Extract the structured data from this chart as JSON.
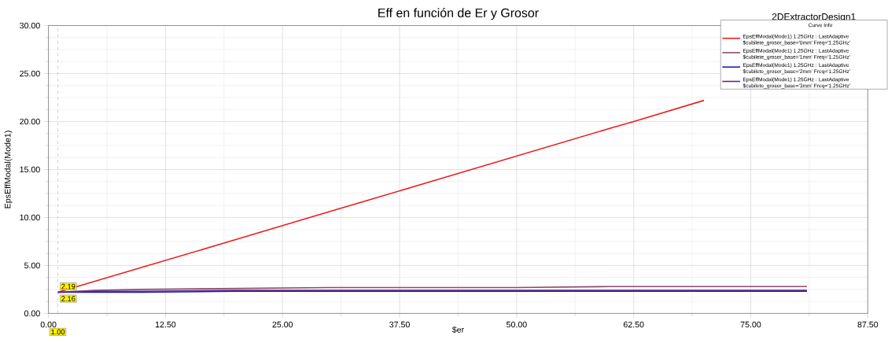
{
  "chart_data": {
    "type": "line",
    "title": "Eff en función de Er y Grosor",
    "xlabel": "$er",
    "ylabel": "EpsEffModal(Mode1)",
    "legend_title": "Curve Info",
    "xlim": [
      0,
      87.5
    ],
    "ylim": [
      0,
      30
    ],
    "xticks": [
      {
        "value": 0,
        "label": "0.00"
      },
      {
        "value": 12.5,
        "label": "12.50"
      },
      {
        "value": 25,
        "label": "25.00"
      },
      {
        "value": 37.5,
        "label": "37.50"
      },
      {
        "value": 50,
        "label": "50.00"
      },
      {
        "value": 62.5,
        "label": "62.50"
      },
      {
        "value": 75,
        "label": "75.00"
      },
      {
        "value": 87.5,
        "label": "87.50"
      }
    ],
    "yticks": [
      {
        "value": 0,
        "label": "0.00"
      },
      {
        "value": 5,
        "label": "5.00"
      },
      {
        "value": 10,
        "label": "10.00"
      },
      {
        "value": 15,
        "label": "15.00"
      },
      {
        "value": 20,
        "label": "20.00"
      },
      {
        "value": 25,
        "label": "25.00"
      },
      {
        "value": 30,
        "label": "30.00"
      }
    ],
    "grid": true,
    "legend": "top right",
    "marker": "none",
    "line_style": "solid",
    "series": [
      {
        "name": "EpsEffModal(Mode1) 1.25GHz : LastAdaptive $cubilete_grosor_base='0mm' Freq='1.25GHz'",
        "color": "#ee1c1c",
        "x": [
          1,
          10,
          20,
          30,
          40,
          50,
          60,
          62.5,
          70
        ],
        "values": [
          2.2,
          4.8,
          7.7,
          10.6,
          13.5,
          16.4,
          19.3,
          20.0,
          22.2
        ]
      },
      {
        "name": "EpsEffModal(Mode1) 1.25GHz : LastAdaptive $cubilete_grosor_base='1mm' Freq='1.25GHz'",
        "color": "#8b4a6b",
        "x": [
          1,
          5,
          10,
          20,
          30,
          40,
          50,
          60,
          70,
          81
        ],
        "values": [
          2.2,
          2.4,
          2.5,
          2.6,
          2.7,
          2.7,
          2.7,
          2.8,
          2.8,
          2.8
        ]
      },
      {
        "name": "EpsEffModal(Mode1) 1.25GHz : LastAdaptive $cubilete_grosor_base='2mm' Freq='1.25GHz'",
        "color": "#1a1ab8",
        "x": [
          1,
          5,
          10,
          20,
          30,
          40,
          50,
          60,
          70,
          81
        ],
        "values": [
          2.2,
          2.2,
          2.2,
          2.3,
          2.3,
          2.3,
          2.3,
          2.3,
          2.3,
          2.3
        ]
      },
      {
        "name": "EpsEffModal(Mode1) 1.25GHz : LastAdaptive $cubilete_grosor_base='3mm' Freq='1.25GHz'",
        "color": "#5a2a8a",
        "x": [
          1,
          5,
          10,
          20,
          30,
          40,
          50,
          60,
          70,
          81
        ],
        "values": [
          2.2,
          2.3,
          2.3,
          2.4,
          2.4,
          2.4,
          2.4,
          2.4,
          2.4,
          2.4
        ]
      }
    ],
    "ref_lines": [
      {
        "axis": "x",
        "value": 1,
        "label": "1.00",
        "color": "#aaaaaa",
        "line_style": "dashed"
      }
    ],
    "annotations": [
      "2DExtractorDesign1",
      {
        "text": "2.19",
        "x": 1,
        "y": 2.19
      },
      {
        "text": "2.16",
        "x": 1,
        "y": 2.16
      }
    ]
  }
}
